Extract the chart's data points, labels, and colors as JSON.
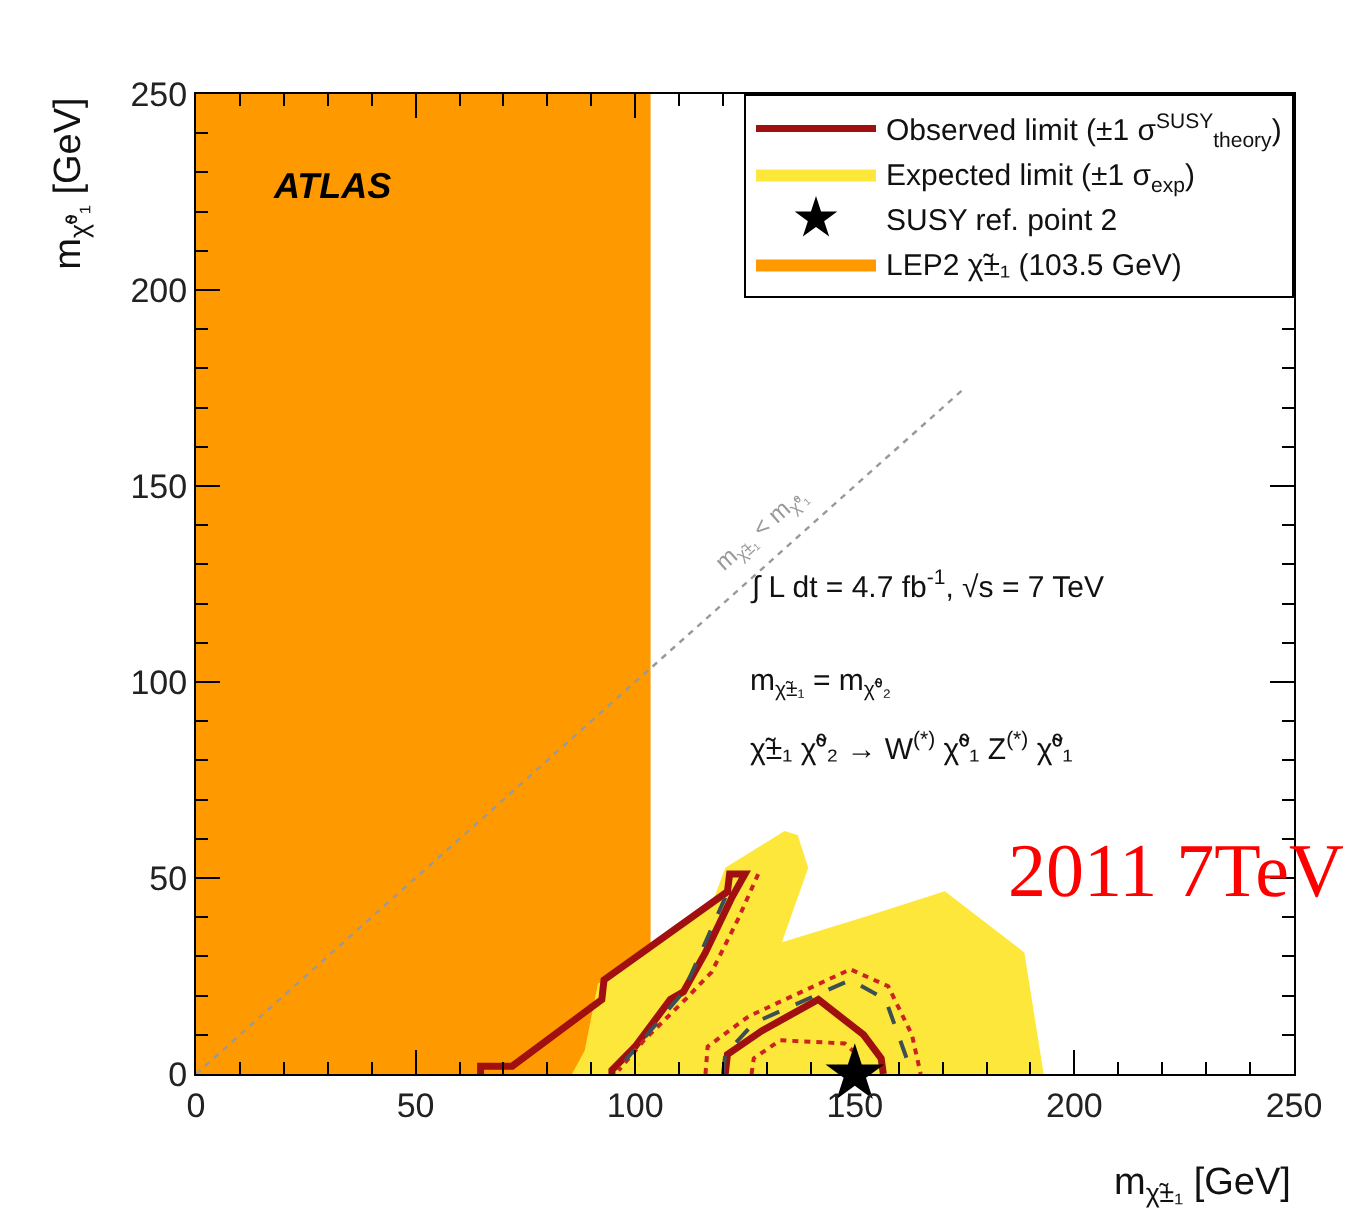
{
  "chart_data": {
    "type": "line",
    "xlabel": "m$_{χ̃±₁}$ [GeV]",
    "ylabel": "m$_{χ̃⁰₁}$ [GeV]",
    "xlim": [
      0,
      250
    ],
    "ylim": [
      0,
      250
    ],
    "xticks": [
      0,
      50,
      100,
      150,
      200,
      250
    ],
    "yticks": [
      0,
      50,
      100,
      150,
      200,
      250
    ],
    "legend": "top right",
    "series": [
      {
        "name": "Observed limit (±1 σ$^{SUSY}$$_{theory}$)",
        "color": "#a01010",
        "line_style": "solid",
        "x": [
          64.8,
          64.8,
          72,
          92.4,
          92.9,
          121,
          121.5,
          125,
          122,
          116,
          111,
          108,
          100,
          94.7,
          94.7,
          null,
          120.5,
          121,
          128.8,
          141.7,
          152,
          156,
          156.5
        ],
        "values": [
          0,
          2,
          2,
          19,
          24,
          46.5,
          51,
          51,
          45,
          31,
          21,
          19,
          7,
          1,
          0,
          null,
          0,
          5,
          11,
          19,
          10,
          4,
          0
        ]
      },
      {
        "name": "Expected limit (±1 σ$_{exp}$)",
        "type": "area",
        "color": "#fde73a",
        "x": [
          85.6,
          88.5,
          91.5,
          97,
          103,
          118,
          120.5,
          134,
          137,
          139.4,
          133.4,
          152,
          170.5,
          188.6,
          193,
          85.6
        ],
        "values": [
          0,
          6,
          23,
          27,
          31,
          45,
          52.6,
          62,
          61,
          52.6,
          33.6,
          40,
          46.6,
          31,
          0,
          0
        ]
      },
      {
        "color": "#999999",
        "line_style": "dotted",
        "x": [
          0,
          175
        ],
        "values": [
          0,
          175
        ]
      },
      {
        "color": "#cc2222",
        "line_style": "dotted",
        "x": [
          128,
          123.5,
          117.4,
          111.4,
          102,
          96.2,
          null,
          116,
          116.5,
          125.8,
          149,
          157.6,
          163,
          165,
          null,
          126.5,
          127,
          133,
          147.7,
          150.5,
          150.8
        ],
        "values": [
          51,
          39.7,
          26,
          19,
          8.6,
          0.9,
          null,
          0,
          7,
          14.7,
          26.7,
          22.4,
          10,
          0,
          null,
          0,
          4,
          8.6,
          7.8,
          5,
          0
        ]
      },
      {
        "color": "#3d4f55",
        "line_style": "dashed",
        "x": [
          120.5,
          111,
          97.7,
          null,
          120,
          120.5,
          127,
          149,
          157,
          162,
          162.4
        ],
        "values": [
          45,
          21,
          3.4,
          null,
          0,
          5,
          13,
          24,
          19,
          3.4,
          0
        ]
      },
      {
        "name": "SUSY ref. point 2",
        "type": "scatter",
        "color": "#000000",
        "marker": "star",
        "x": [
          150
        ],
        "values": [
          0
        ]
      },
      {
        "name": "LEP2 χ̃±₁ (103.5 GeV)",
        "type": "area",
        "color": "#ff9900",
        "x": [
          0,
          103.5,
          103.5,
          0,
          0
        ],
        "values": [
          0,
          0,
          250,
          250,
          0
        ]
      }
    ],
    "annotations": [
      "ATLAS",
      "∫ L dt = 4.7 fb$^{-1}$, √s = 7 TeV",
      "m$_{χ̃±₁}$ = m$_{χ̃⁰₂}$",
      "χ̃±₁ χ̃⁰₂ → W$^{(*)}$ χ̃⁰₁ Z$^{(*)}$ χ̃⁰₁",
      "2011 7TeV",
      "m$_{χ̃±₁}$ < m$_{χ̃⁰₁}$"
    ]
  }
}
